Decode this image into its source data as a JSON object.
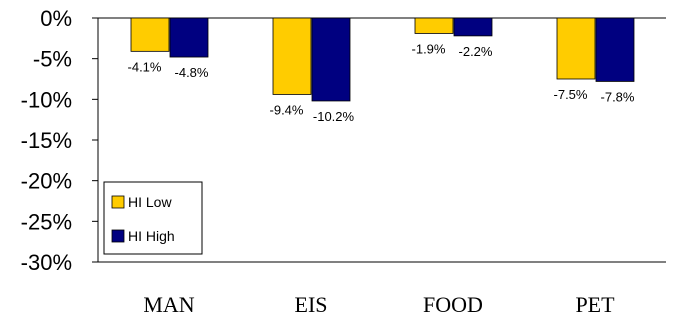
{
  "chart_data": {
    "type": "bar",
    "categories": [
      "MAN",
      "EIS",
      "FOOD",
      "PET"
    ],
    "series": [
      {
        "name": "HI Low",
        "color": "#FFCC00",
        "values": [
          -4.1,
          -9.4,
          -1.9,
          -7.5
        ],
        "labels": [
          "-4.1%",
          "-9.4%",
          "-1.9%",
          "-7.5%"
        ]
      },
      {
        "name": "HI High",
        "color": "#000080",
        "values": [
          -4.8,
          -10.2,
          -2.2,
          -7.8
        ],
        "labels": [
          "-4.8%",
          "-10.2%",
          "-2.2%",
          "-7.8%"
        ]
      }
    ],
    "y_ticks": [
      "0%",
      "-5%",
      "-10%",
      "-15%",
      "-20%",
      "-25%",
      "-30%"
    ],
    "ylim": [
      -30,
      0
    ],
    "grid": false,
    "legend_position": "bottom-left"
  }
}
